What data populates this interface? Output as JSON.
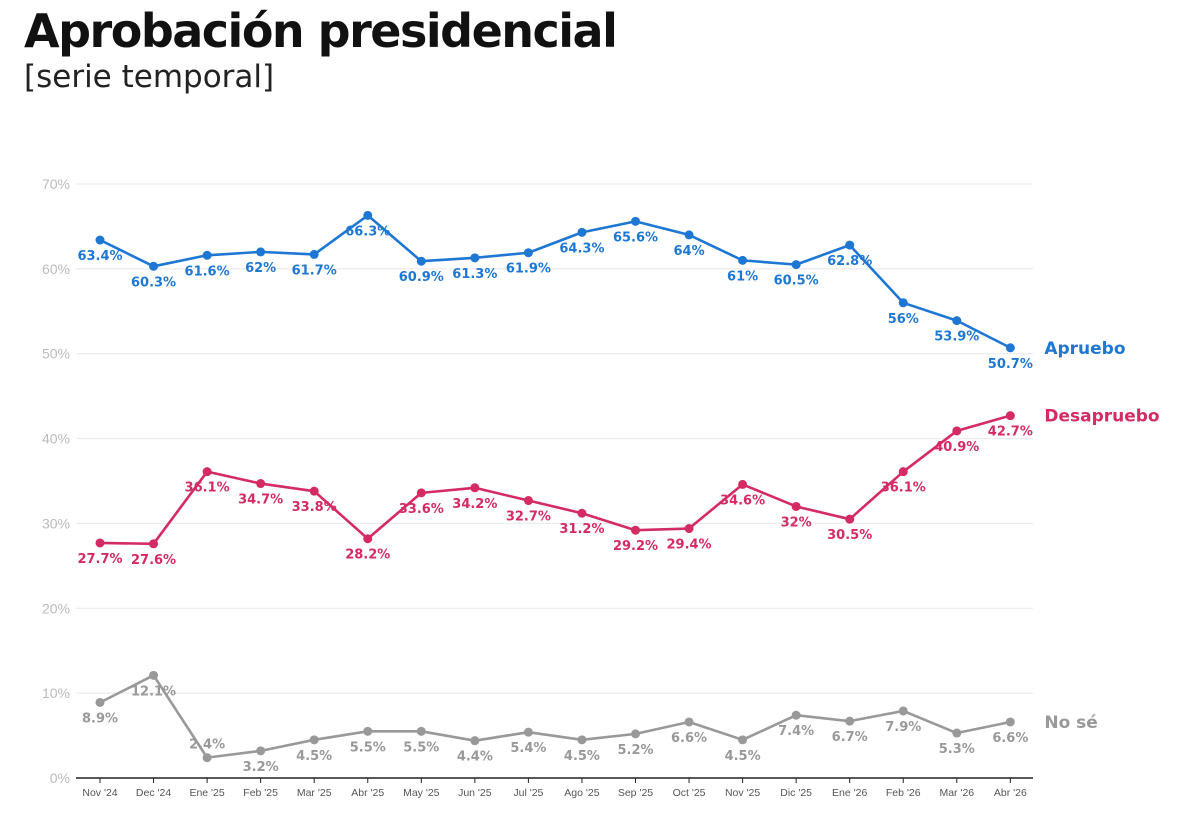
{
  "header": {
    "title": "Aprobación presidencial",
    "subtitle": "[serie temporal]"
  },
  "chart_data": {
    "type": "line",
    "title": "Aprobación presidencial",
    "subtitle": "[serie temporal]",
    "xlabel": "",
    "ylabel": "",
    "categories": [
      "Nov '24",
      "Dec '24",
      "Ene '25",
      "Feb '25",
      "Mar '25",
      "Abr '25",
      "May '25",
      "Jun '25",
      "Jul '25",
      "Ago '25",
      "Sep '25",
      "Oct '25",
      "Nov '25",
      "Dic '25",
      "Ene '26",
      "Feb '26",
      "Mar '26",
      "Abr '26"
    ],
    "ylim": [
      0,
      70
    ],
    "y_ticks": [
      0,
      10,
      20,
      30,
      40,
      50,
      60,
      70
    ],
    "y_tick_labels": [
      "0%",
      "10%",
      "20%",
      "30%",
      "40%",
      "50%",
      "60%",
      "70%"
    ],
    "grid": "horizontal",
    "legend": "direct labels at right end of lines",
    "series": [
      {
        "name": "Apruebo",
        "color": "#1f77d4",
        "values": [
          63.4,
          60.3,
          61.6,
          62,
          61.7,
          66.3,
          60.9,
          61.3,
          61.9,
          64.3,
          65.6,
          64,
          61,
          60.5,
          62.8,
          56,
          53.9,
          50.7
        ],
        "labels": [
          "63.4%",
          "60.3%",
          "61.6%",
          "62%",
          "61.7%",
          "66.3%",
          "60.9%",
          "61.3%",
          "61.9%",
          "64.3%",
          "65.6%",
          "64%",
          "61%",
          "60.5%",
          "62.8%",
          "56%",
          "53.9%",
          "50.7%"
        ],
        "label_pos": [
          "below",
          "below",
          "below",
          "below",
          "below",
          "below",
          "below",
          "below",
          "below",
          "below",
          "below",
          "below",
          "below",
          "below",
          "below",
          "below",
          "below",
          "below"
        ]
      },
      {
        "name": "Desapruebo",
        "color": "#d42b63",
        "values": [
          27.7,
          27.6,
          36.1,
          34.7,
          33.8,
          28.2,
          33.6,
          34.2,
          32.7,
          31.2,
          29.2,
          29.4,
          34.6,
          32,
          30.5,
          36.1,
          40.9,
          42.7
        ],
        "labels": [
          "27.7%",
          "27.6%",
          "36.1%",
          "34.7%",
          "33.8%",
          "28.2%",
          "33.6%",
          "34.2%",
          "32.7%",
          "31.2%",
          "29.2%",
          "29.4%",
          "34.6%",
          "32%",
          "30.5%",
          "36.1%",
          "40.9%",
          "42.7%"
        ],
        "label_pos": [
          "below",
          "below",
          "below",
          "below",
          "below",
          "below",
          "below",
          "below",
          "below",
          "below",
          "below",
          "below",
          "below",
          "below",
          "below",
          "below",
          "below",
          "below"
        ]
      },
      {
        "name": "No sé",
        "color": "#999999",
        "values": [
          8.9,
          12.1,
          2.4,
          3.2,
          4.5,
          5.5,
          5.5,
          4.4,
          5.4,
          4.5,
          5.2,
          6.6,
          4.5,
          7.4,
          6.7,
          7.9,
          5.3,
          6.6
        ],
        "labels": [
          "8.9%",
          "12.1%",
          "2.4%",
          "3.2%",
          "4.5%",
          "5.5%",
          "5.5%",
          "4.4%",
          "5.4%",
          "4.5%",
          "5.2%",
          "6.6%",
          "4.5%",
          "7.4%",
          "6.7%",
          "7.9%",
          "5.3%",
          "6.6%"
        ],
        "label_pos": [
          "below",
          "below",
          "above",
          "below",
          "below",
          "below",
          "below",
          "below",
          "below",
          "below",
          "below",
          "below",
          "below",
          "below",
          "below",
          "below",
          "below",
          "below"
        ]
      }
    ]
  }
}
